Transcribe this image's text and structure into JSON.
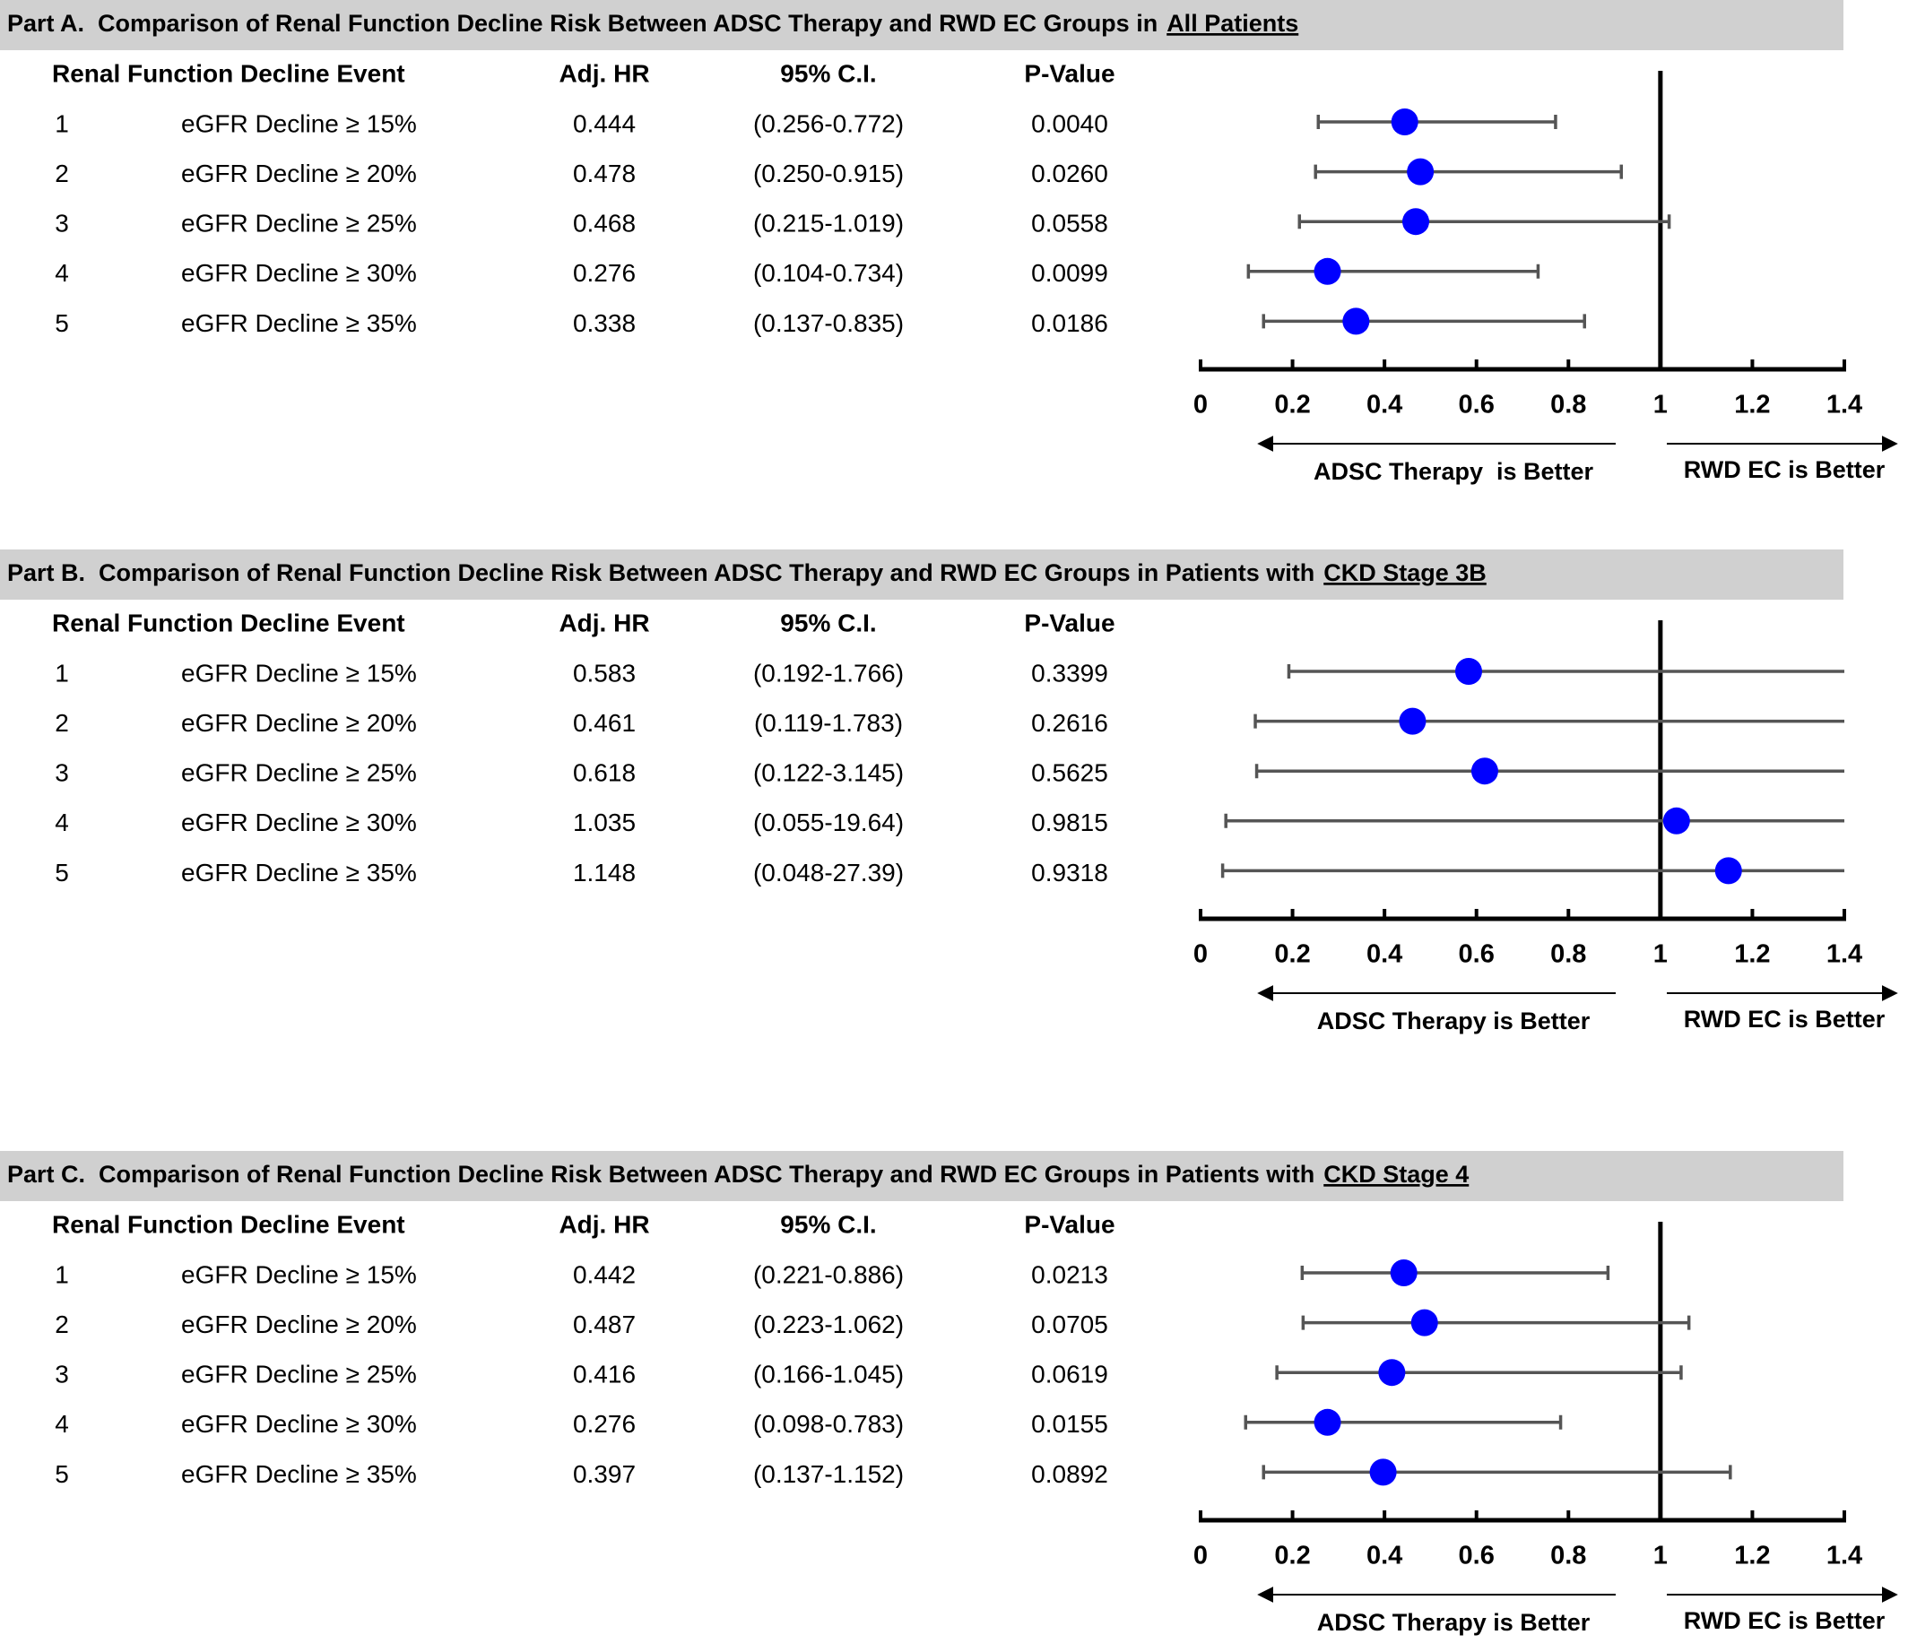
{
  "chart_data": [
    {
      "type": "forest",
      "title": "Part A.  Comparison of Renal Function Decline Risk Between ADSC Therapy and RWD EC Groups in",
      "title_emphasis": "All Patients",
      "column_headers": [
        "Renal Function Decline Event",
        "Adj. HR",
        "95% C.I.",
        "P-Value"
      ],
      "row_numbers": [
        1,
        2,
        3,
        4,
        5
      ],
      "categories": [
        "eGFR Decline ≥ 15%",
        "eGFR Decline ≥ 20%",
        "eGFR Decline ≥ 25%",
        "eGFR Decline ≥ 30%",
        "eGFR Decline ≥ 35%"
      ],
      "values": [
        0.444,
        0.478,
        0.468,
        0.276,
        0.338
      ],
      "ci_low": [
        0.256,
        0.25,
        0.215,
        0.104,
        0.137
      ],
      "ci_high": [
        0.772,
        0.915,
        1.019,
        0.734,
        0.835
      ],
      "ci_labels": [
        "(0.256-0.772)",
        "(0.250-0.915)",
        "(0.215-1.019)",
        "(0.104-0.734)",
        "(0.137-0.835)"
      ],
      "p_values": [
        "0.0040",
        "0.0260",
        "0.0558",
        "0.0099",
        "0.0186"
      ],
      "xlim": [
        0,
        1.4
      ],
      "xticks": [
        0,
        0.2,
        0.4,
        0.6,
        0.8,
        1,
        1.2,
        1.4
      ],
      "reference": 1,
      "left_label": "ADSC Therapy  is Better",
      "right_label": "RWD EC is Better",
      "marker_color": "#0000ff",
      "bar_color": "#555555"
    },
    {
      "type": "forest",
      "title": "Part B.  Comparison of Renal Function Decline Risk Between ADSC Therapy and RWD EC Groups in Patients with",
      "title_emphasis": "CKD Stage 3B",
      "column_headers": [
        "Renal Function Decline Event",
        "Adj. HR",
        "95% C.I.",
        "P-Value"
      ],
      "row_numbers": [
        1,
        2,
        3,
        4,
        5
      ],
      "categories": [
        "eGFR Decline ≥ 15%",
        "eGFR Decline ≥ 20%",
        "eGFR Decline ≥ 25%",
        "eGFR Decline ≥ 30%",
        "eGFR Decline ≥ 35%"
      ],
      "values": [
        0.583,
        0.461,
        0.618,
        1.035,
        1.148
      ],
      "ci_low": [
        0.192,
        0.119,
        0.122,
        0.055,
        0.048
      ],
      "ci_high": [
        1.766,
        1.783,
        3.145,
        19.64,
        27.39
      ],
      "ci_labels": [
        "(0.192-1.766)",
        "(0.119-1.783)",
        "(0.122-3.145)",
        "(0.055-19.64)",
        "(0.048-27.39)"
      ],
      "p_values": [
        "0.3399",
        "0.2616",
        "0.5625",
        "0.9815",
        "0.9318"
      ],
      "xlim": [
        0,
        1.4
      ],
      "xticks": [
        0,
        0.2,
        0.4,
        0.6,
        0.8,
        1,
        1.2,
        1.4
      ],
      "reference": 1,
      "left_label": "ADSC Therapy is Better",
      "right_label": "RWD EC is Better",
      "marker_color": "#0000ff",
      "bar_color": "#555555"
    },
    {
      "type": "forest",
      "title": "Part C.  Comparison of Renal Function Decline Risk Between ADSC Therapy and RWD EC Groups in Patients with",
      "title_emphasis": "CKD Stage 4",
      "column_headers": [
        "Renal Function Decline Event",
        "Adj. HR",
        "95% C.I.",
        "P-Value"
      ],
      "row_numbers": [
        1,
        2,
        3,
        4,
        5
      ],
      "categories": [
        "eGFR Decline ≥ 15%",
        "eGFR Decline ≥ 20%",
        "eGFR Decline ≥ 25%",
        "eGFR Decline ≥ 30%",
        "eGFR Decline ≥ 35%"
      ],
      "values": [
        0.442,
        0.487,
        0.416,
        0.276,
        0.397
      ],
      "ci_low": [
        0.221,
        0.223,
        0.166,
        0.098,
        0.137
      ],
      "ci_high": [
        0.886,
        1.062,
        1.045,
        0.783,
        1.152
      ],
      "ci_labels": [
        "(0.221-0.886)",
        "(0.223-1.062)",
        "(0.166-1.045)",
        "(0.098-0.783)",
        "(0.137-1.152)"
      ],
      "p_values": [
        "0.0213",
        "0.0705",
        "0.0619",
        "0.0155",
        "0.0892"
      ],
      "xlim": [
        0,
        1.4
      ],
      "xticks": [
        0,
        0.2,
        0.4,
        0.6,
        0.8,
        1,
        1.2,
        1.4
      ],
      "reference": 1,
      "left_label": "ADSC Therapy is Better",
      "right_label": "RWD EC is Better",
      "marker_color": "#0000ff",
      "bar_color": "#555555"
    }
  ]
}
